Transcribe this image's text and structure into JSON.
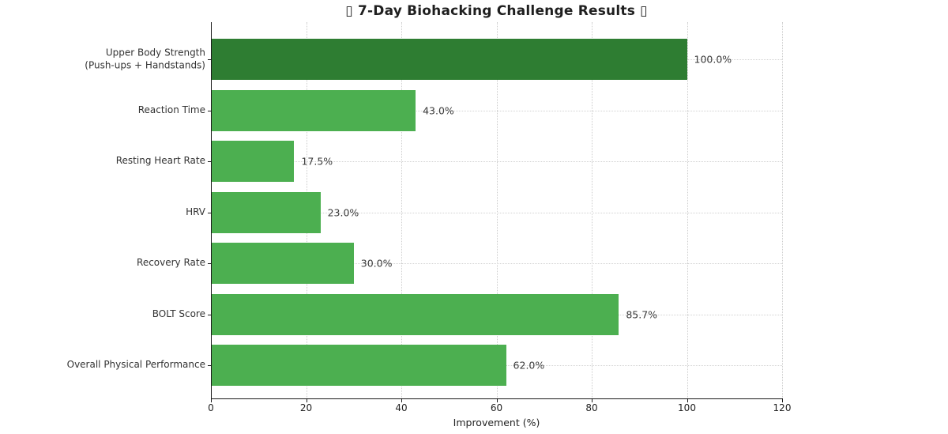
{
  "chart_data": {
    "type": "bar",
    "orientation": "horizontal",
    "title": "▯ 7-Day Biohacking Challenge Results ▯",
    "xlabel": "Improvement (%)",
    "ylabel": "",
    "xlim": [
      0,
      120
    ],
    "xticks": [
      0,
      20,
      40,
      60,
      80,
      100,
      120
    ],
    "xtick_labels": [
      "0",
      "20",
      "40",
      "60",
      "80",
      "100",
      "120"
    ],
    "categories": [
      "Upper Body Strength\n(Push-ups + Handstands)",
      "Reaction Time",
      "Resting Heart Rate",
      "HRV",
      "Recovery Rate",
      "BOLT Score",
      "Overall Physical Performance"
    ],
    "values": [
      100.0,
      43.0,
      17.5,
      23.0,
      30.0,
      85.7,
      62.0
    ],
    "value_labels": [
      "100.0%",
      "43.0%",
      "17.5%",
      "23.0%",
      "30.0%",
      "85.7%",
      "62.0%"
    ],
    "highlight_index": 0,
    "colors": {
      "bar_highlight": "#2e7d32",
      "bar_default": "#4caf50",
      "grid": "#d2d2d2",
      "spine": "#1a1a1a",
      "text": "#333333"
    },
    "grid": "dotted, both axes",
    "legend": "none"
  }
}
